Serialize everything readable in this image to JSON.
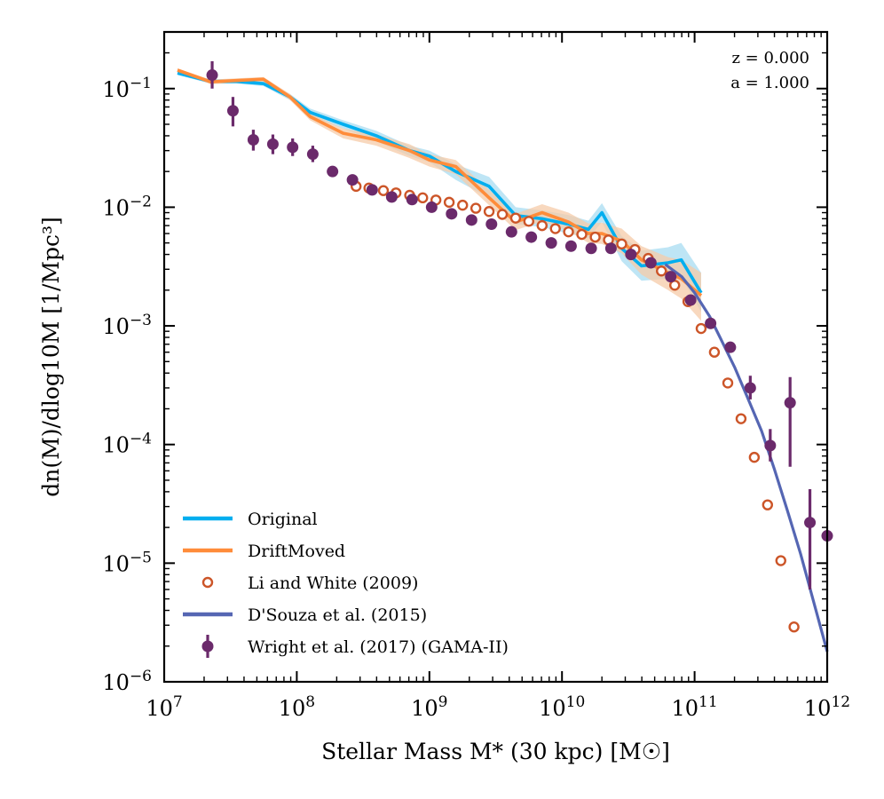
{
  "chart_data": {
    "type": "line",
    "xscale": "log",
    "yscale": "log",
    "xlim": [
      10000000.0,
      1000000000000.0
    ],
    "ylim": [
      1e-06,
      0.3
    ],
    "xlabel": "Stellar Mass M* (30 kpc) [M☉]",
    "ylabel": "dn(M)/dlog10M [1/Mpc³]",
    "x_ticks": [
      {
        "value": 10000000.0,
        "label": "10^7"
      },
      {
        "value": 100000000.0,
        "label": "10^8"
      },
      {
        "value": 1000000000.0,
        "label": "10^9"
      },
      {
        "value": 10000000000.0,
        "label": "10^10"
      },
      {
        "value": 100000000000.0,
        "label": "10^11"
      },
      {
        "value": 1000000000000.0,
        "label": "10^12"
      }
    ],
    "y_ticks": [
      {
        "value": 1e-06,
        "label": "10^−6"
      },
      {
        "value": 1e-05,
        "label": "10^−5"
      },
      {
        "value": 0.0001,
        "label": "10^−4"
      },
      {
        "value": 0.001,
        "label": "10^−3"
      },
      {
        "value": 0.01,
        "label": "10^−2"
      },
      {
        "value": 0.1,
        "label": "10^−1"
      }
    ],
    "annotations": [
      "z = 0.000",
      "a = 1.000"
    ],
    "legend_position": "lower-left",
    "series": [
      {
        "name": "Original",
        "kind": "line",
        "color": "#00aeef",
        "band_color": "#a8dcf2",
        "x": [
          12600000.0,
          22400000.0,
          35000000.0,
          56000000.0,
          89000000.0,
          126000000.0,
          224000000.0,
          398000000.0,
          708000000.0,
          1000000000.0,
          1580000000.0,
          2820000000.0,
          4470000000.0,
          7080000000.0,
          11200000000.0,
          15800000000.0,
          20000000000.0,
          28200000000.0,
          39800000000.0,
          63100000000.0,
          79400000000.0,
          112000000000.0
        ],
        "y": [
          0.135,
          0.115,
          0.115,
          0.11,
          0.085,
          0.063,
          0.05,
          0.04,
          0.03,
          0.027,
          0.02,
          0.015,
          0.0085,
          0.008,
          0.0072,
          0.0065,
          0.009,
          0.0045,
          0.0032,
          0.0034,
          0.0036,
          0.0019
        ],
        "y_low": [
          0.13,
          0.11,
          0.11,
          0.105,
          0.08,
          0.058,
          0.046,
          0.036,
          0.027,
          0.024,
          0.017,
          0.012,
          0.0072,
          0.0068,
          0.006,
          0.0055,
          0.0075,
          0.0035,
          0.0024,
          0.0025,
          0.0026,
          0.0013
        ],
        "y_high": [
          0.14,
          0.12,
          0.12,
          0.115,
          0.09,
          0.068,
          0.054,
          0.044,
          0.033,
          0.03,
          0.023,
          0.018,
          0.01,
          0.0094,
          0.0086,
          0.0077,
          0.0108,
          0.0057,
          0.0043,
          0.0046,
          0.005,
          0.0028
        ]
      },
      {
        "name": "DriftMoved",
        "kind": "line",
        "color": "#ff8c3a",
        "band_color": "#f5cba8",
        "x": [
          12600000.0,
          22400000.0,
          35000000.0,
          56000000.0,
          89000000.0,
          126000000.0,
          224000000.0,
          398000000.0,
          708000000.0,
          1000000000.0,
          1580000000.0,
          2820000000.0,
          4470000000.0,
          7080000000.0,
          11200000000.0,
          15800000000.0,
          20000000000.0,
          28200000000.0,
          39800000000.0,
          63100000000.0,
          79400000000.0,
          112000000000.0
        ],
        "y": [
          0.143,
          0.114,
          0.117,
          0.12,
          0.085,
          0.058,
          0.042,
          0.037,
          0.03,
          0.025,
          0.022,
          0.012,
          0.0075,
          0.009,
          0.0075,
          0.006,
          0.006,
          0.0052,
          0.0036,
          0.0028,
          0.0025,
          0.0018
        ],
        "y_low": [
          0.138,
          0.109,
          0.112,
          0.115,
          0.08,
          0.054,
          0.038,
          0.033,
          0.026,
          0.022,
          0.019,
          0.0104,
          0.0064,
          0.0076,
          0.0063,
          0.005,
          0.0049,
          0.0041,
          0.0027,
          0.002,
          0.0017,
          0.0011
        ],
        "y_high": [
          0.148,
          0.119,
          0.122,
          0.125,
          0.09,
          0.062,
          0.046,
          0.041,
          0.034,
          0.028,
          0.025,
          0.014,
          0.0088,
          0.0106,
          0.009,
          0.0073,
          0.0074,
          0.0066,
          0.0047,
          0.0038,
          0.0036,
          0.0028
        ]
      },
      {
        "name": "Li and White (2009)",
        "kind": "scatter-open",
        "color": "#cc5528",
        "x": [
          280000000.0,
          350000000.0,
          450000000.0,
          560000000.0,
          710000000.0,
          890000000.0,
          1120000000.0,
          1410000000.0,
          1780000000.0,
          2240000000.0,
          2820000000.0,
          3550000000.0,
          4470000000.0,
          5620000000.0,
          7080000000.0,
          8910000000.0,
          11200000000.0,
          14100000000.0,
          17800000000.0,
          22400000000.0,
          28200000000.0,
          35500000000.0,
          44700000000.0,
          56200000000.0,
          70800000000.0,
          89100000000.0,
          112000000000.0,
          141000000000.0,
          178000000000.0,
          224000000000.0,
          282000000000.0,
          355000000000.0,
          447000000000.0,
          562000000000.0
        ],
        "y": [
          0.015,
          0.0145,
          0.0138,
          0.0132,
          0.0126,
          0.012,
          0.0115,
          0.011,
          0.0104,
          0.0098,
          0.0092,
          0.0087,
          0.0081,
          0.0076,
          0.007,
          0.0066,
          0.0062,
          0.0059,
          0.0056,
          0.0053,
          0.0049,
          0.0044,
          0.0037,
          0.0029,
          0.0022,
          0.0016,
          0.00095,
          0.0006,
          0.00033,
          0.000165,
          7.8e-05,
          3.1e-05,
          1.05e-05,
          2.9e-06
        ]
      },
      {
        "name": "D'Souza et al. (2015)",
        "kind": "line",
        "color": "#5566b3",
        "x": [
          60000000000.0,
          80000000000.0,
          100000000000.0,
          130000000000.0,
          160000000000.0,
          200000000000.0,
          250000000000.0,
          320000000000.0,
          400000000000.0,
          500000000000.0,
          630000000000.0,
          800000000000.0,
          1000000000000.0
        ],
        "y": [
          0.0033,
          0.0026,
          0.0019,
          0.0012,
          0.00075,
          0.00045,
          0.00025,
          0.00013,
          6.2e-05,
          2.8e-05,
          1.2e-05,
          4.5e-06,
          1.8e-06
        ]
      },
      {
        "name": "Wright et al. (2017) (GAMA-II)",
        "kind": "scatter-errorbar",
        "color": "#6b2a6b",
        "points": [
          {
            "x": 23000000.0,
            "y": 0.13,
            "ylo": 0.1,
            "yhi": 0.17
          },
          {
            "x": 33000000.0,
            "y": 0.065,
            "ylo": 0.048,
            "yhi": 0.085
          },
          {
            "x": 47000000.0,
            "y": 0.037,
            "ylo": 0.03,
            "yhi": 0.045
          },
          {
            "x": 66000000.0,
            "y": 0.034,
            "ylo": 0.028,
            "yhi": 0.041
          },
          {
            "x": 93000000.0,
            "y": 0.032,
            "ylo": 0.027,
            "yhi": 0.038
          },
          {
            "x": 132000000.0,
            "y": 0.028,
            "ylo": 0.024,
            "yhi": 0.033
          },
          {
            "x": 186000000.0,
            "y": 0.02,
            "ylo": 0.018,
            "yhi": 0.022
          },
          {
            "x": 263000000.0,
            "y": 0.017
          },
          {
            "x": 370000000.0,
            "y": 0.014
          },
          {
            "x": 520000000.0,
            "y": 0.0122
          },
          {
            "x": 740000000.0,
            "y": 0.0116
          },
          {
            "x": 1040000000.0,
            "y": 0.01
          },
          {
            "x": 1470000000.0,
            "y": 0.0088
          },
          {
            "x": 2080000000.0,
            "y": 0.0078
          },
          {
            "x": 2940000000.0,
            "y": 0.0072
          },
          {
            "x": 4160000000.0,
            "y": 0.0062
          },
          {
            "x": 5870000000.0,
            "y": 0.0056
          },
          {
            "x": 8300000000.0,
            "y": 0.005
          },
          {
            "x": 11700000000.0,
            "y": 0.0047
          },
          {
            "x": 16600000000.0,
            "y": 0.0045
          },
          {
            "x": 23400000000.0,
            "y": 0.0045
          },
          {
            "x": 33100000000.0,
            "y": 0.004
          },
          {
            "x": 46800000000.0,
            "y": 0.0034
          },
          {
            "x": 66100000000.0,
            "y": 0.0026
          },
          {
            "x": 93300000000.0,
            "y": 0.00165
          },
          {
            "x": 132000000000.0,
            "y": 0.00105
          },
          {
            "x": 186000000000.0,
            "y": 0.00066
          },
          {
            "x": 263000000000.0,
            "y": 0.0003,
            "ylo": 0.00024,
            "yhi": 0.00038
          },
          {
            "x": 372000000000.0,
            "y": 9.8e-05,
            "ylo": 7.2e-05,
            "yhi": 0.000135
          },
          {
            "x": 525000000000.0,
            "y": 0.000225,
            "ylo": 6.5e-05,
            "yhi": 0.00037
          },
          {
            "x": 741000000000.0,
            "y": 2.2e-05,
            "ylo": 6e-06,
            "yhi": 4.2e-05
          },
          {
            "x": 1000000000000.0,
            "y": 1.7e-05
          }
        ]
      }
    ]
  }
}
